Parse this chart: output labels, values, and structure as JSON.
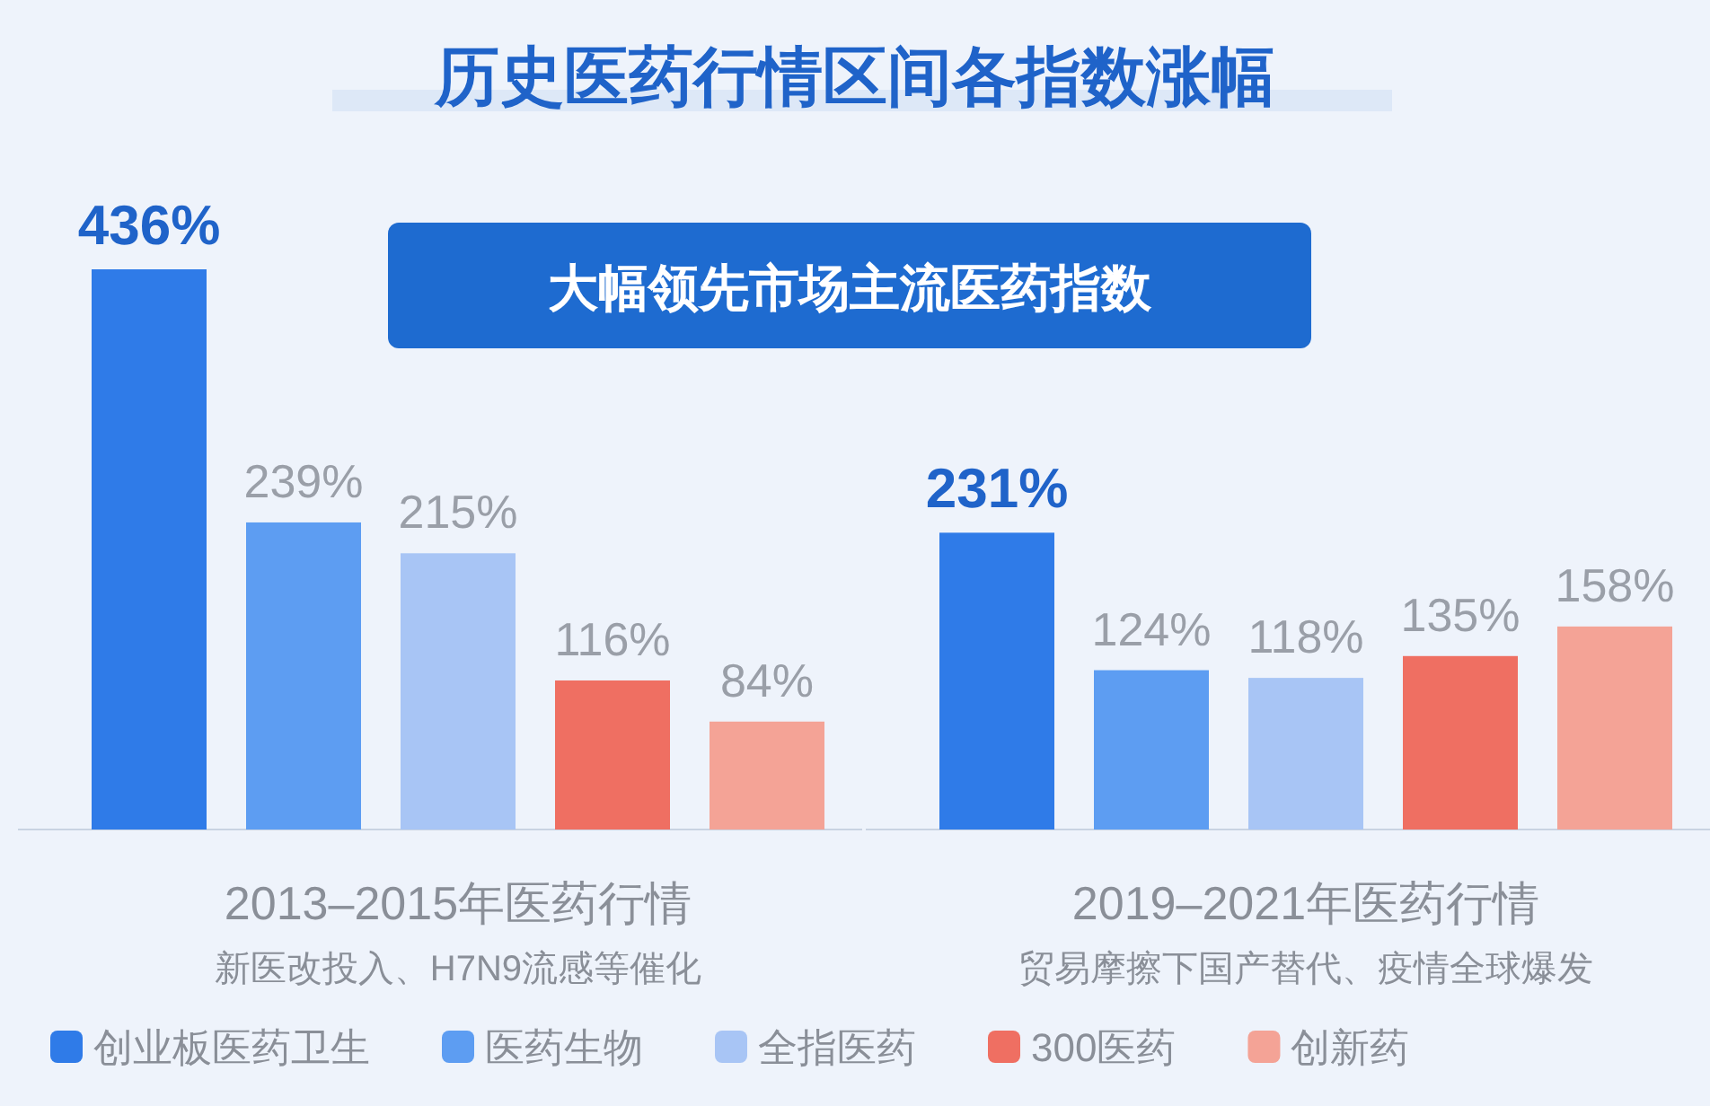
{
  "chart_data": {
    "type": "bar",
    "title": "历史医药行情区间各指数涨幅",
    "subtitle": "大幅领先市场主流医药指数",
    "categories": [
      "2013–2015年医药行情",
      "2019–2021年医药行情"
    ],
    "annotations": [
      "新医改投入、H7N9流感等催化",
      "贸易摩擦下国产替代、疫情全球爆发"
    ],
    "series": [
      {
        "name": "创业板医药卫生",
        "color": "#2f7be8",
        "values": [
          436,
          231
        ],
        "value_labels": [
          "436%",
          "231%"
        ]
      },
      {
        "name": "医药生物",
        "color": "#5d9df2",
        "values": [
          239,
          124
        ],
        "value_labels": [
          "239%",
          "124%"
        ]
      },
      {
        "name": "全指医药",
        "color": "#a8c5f5",
        "values": [
          215,
          118
        ],
        "value_labels": [
          "215%",
          "118%"
        ]
      },
      {
        "name": "300医药",
        "color": "#ef6f62",
        "values": [
          116,
          135
        ],
        "value_labels": [
          "116%",
          "135%"
        ]
      },
      {
        "name": "创新药",
        "color": "#f4a396",
        "values": [
          84,
          158
        ],
        "value_labels": [
          "84%",
          "158%"
        ]
      }
    ],
    "legend": "bottom"
  }
}
